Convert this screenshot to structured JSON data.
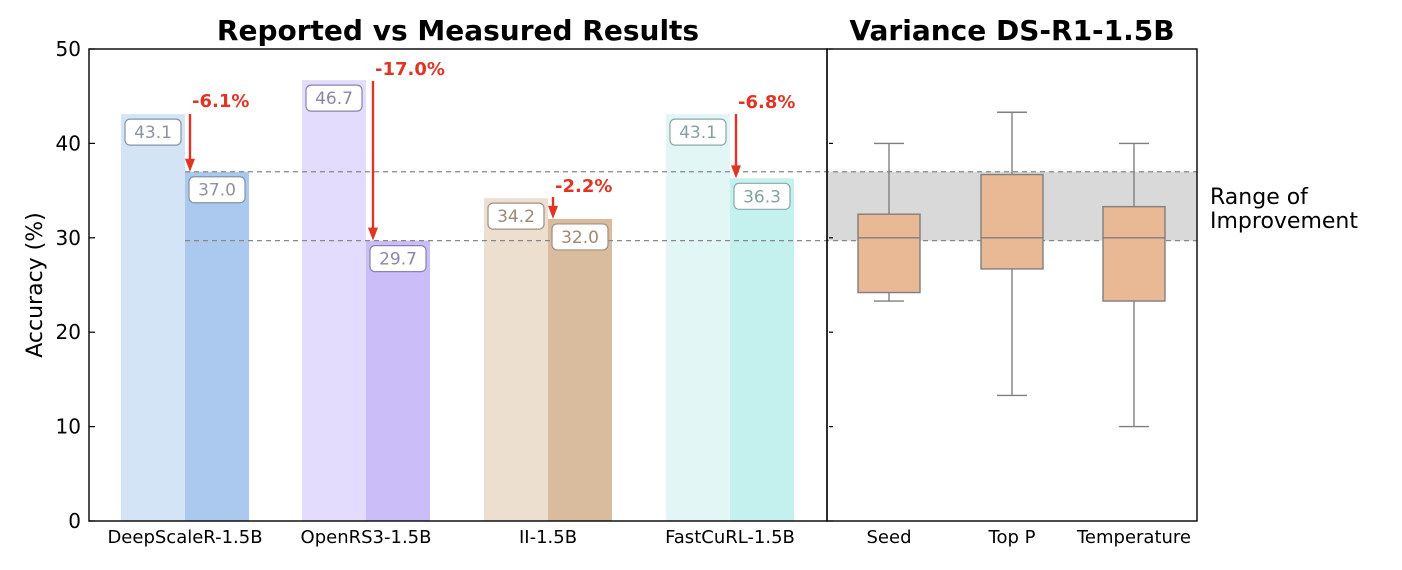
{
  "chart_data": [
    {
      "type": "bar",
      "title": "Reported vs Measured Results",
      "ylabel": "Accuracy (%)",
      "ylim": [
        0,
        50
      ],
      "yticks": [
        0,
        10,
        20,
        30,
        40,
        50
      ],
      "categories": [
        "DeepScaleR-1.5B",
        "OpenRS3-1.5B",
        "II-1.5B",
        "FastCuRL-1.5B"
      ],
      "series": [
        {
          "values": [
            43.1,
            46.7,
            34.2,
            43.1
          ]
        },
        {
          "values": [
            37.0,
            29.7,
            32.0,
            36.3
          ]
        }
      ],
      "value_labels": [
        [
          "43.1",
          "46.7",
          "34.2",
          "43.1"
        ],
        [
          "37.0",
          "29.7",
          "32.0",
          "36.3"
        ]
      ],
      "drop_labels": [
        "-6.1%",
        "-17.0%",
        "-2.2%",
        "-6.8%"
      ],
      "colors": {
        "light": [
          "#d3e4f6",
          "#e4dcfc",
          "#ecdfcf",
          "#e1f6f5"
        ],
        "dark": [
          "#abc8ef",
          "#cbbdf8",
          "#d9bc9e",
          "#c4f0ee"
        ],
        "label_text": [
          "#8c94a1",
          "#8b86a8",
          "#9c8a76",
          "#86a0a0"
        ],
        "label_border": [
          "#8593a6",
          "#8a82b0",
          "#a09080",
          "#8aa8a8"
        ],
        "arrow": "#e03425",
        "reference_line": "#888888"
      },
      "reference_lines": [
        37.0,
        29.7
      ]
    },
    {
      "type": "box",
      "title": "Variance DS-R1-1.5B",
      "ylim": [
        0,
        50
      ],
      "categories": [
        "Seed",
        "Top P",
        "Temperature"
      ],
      "boxes": [
        {
          "whisker_low": 23.3,
          "q1": 24.2,
          "median": 30.0,
          "q3": 32.5,
          "whisker_high": 40.0
        },
        {
          "whisker_low": 13.3,
          "q1": 26.7,
          "median": 30.0,
          "q3": 36.7,
          "whisker_high": 43.3
        },
        {
          "whisker_low": 10.0,
          "q1": 23.3,
          "median": 30.0,
          "q3": 33.3,
          "whisker_high": 40.0
        }
      ],
      "band": {
        "low": 29.7,
        "high": 37.0,
        "label_lines": [
          "Range of",
          "Improvement"
        ],
        "color": "#d9d9d9"
      },
      "box_color": "#e9b894",
      "line_color": "#7f7f7f"
    }
  ]
}
